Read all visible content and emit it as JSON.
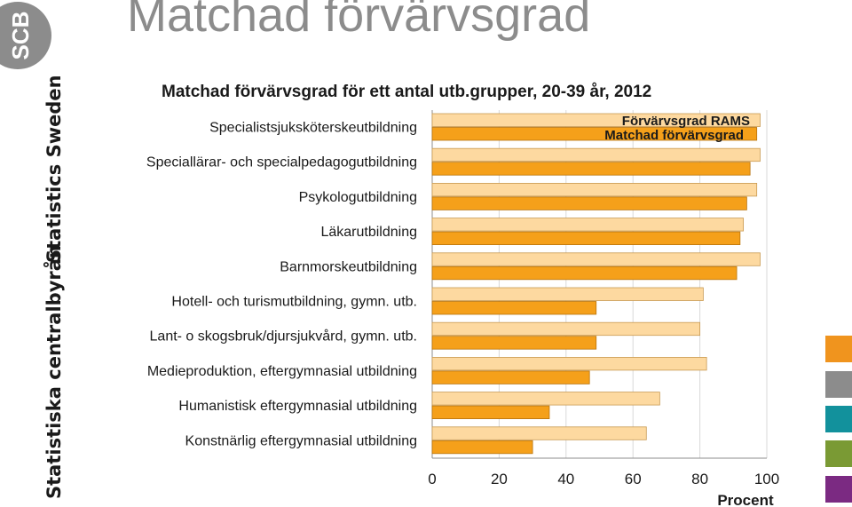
{
  "slide_title": "Matchad förvärvsgrad",
  "brand": {
    "logo_text": "SCB",
    "side_label_top": "Statistics Sweden",
    "side_label_bottom": "Statistiska centralbyrån"
  },
  "swatches": [
    "#f0941e",
    "#8c8c8c",
    "#12919c",
    "#7a9a34",
    "#7b2a82"
  ],
  "colors": {
    "rams": "#fdd9a0",
    "rams_border": "#c89a52",
    "matchad": "#f5a01a",
    "matchad_border": "#b8740e"
  },
  "chart_data": {
    "type": "bar",
    "orientation": "horizontal",
    "title": "Matchad förvärvsgrad för ett antal utb.grupper, 20-39 år, 2012",
    "xlabel": "Procent",
    "xlim": [
      0,
      100
    ],
    "xticks": [
      0,
      20,
      40,
      60,
      80,
      100
    ],
    "grid": true,
    "legend": "top-right",
    "categories": [
      "Specialistsjuksköterskeutbildning",
      "Speciallärar- och specialpedagogutbildning",
      "Psykologutbildning",
      "Läkarutbildning",
      "Barnmorskeutbildning",
      "Hotell- och turismutbildning, gymn. utb.",
      "Lant- o skogsbruk/djursjukvård, gymn. utb.",
      "Medieproduktion, eftergymnasial utbildning",
      "Humanistisk eftergymnasial utbildning",
      "Konstnärlig eftergymnasial utbildning"
    ],
    "series": [
      {
        "name": "Förvärvsgrad RAMS",
        "values": [
          98,
          98,
          97,
          93,
          98,
          81,
          80,
          82,
          68,
          64
        ]
      },
      {
        "name": "Matchad förvärvsgrad",
        "values": [
          97,
          95,
          94,
          92,
          91,
          49,
          49,
          47,
          35,
          30
        ]
      }
    ]
  }
}
